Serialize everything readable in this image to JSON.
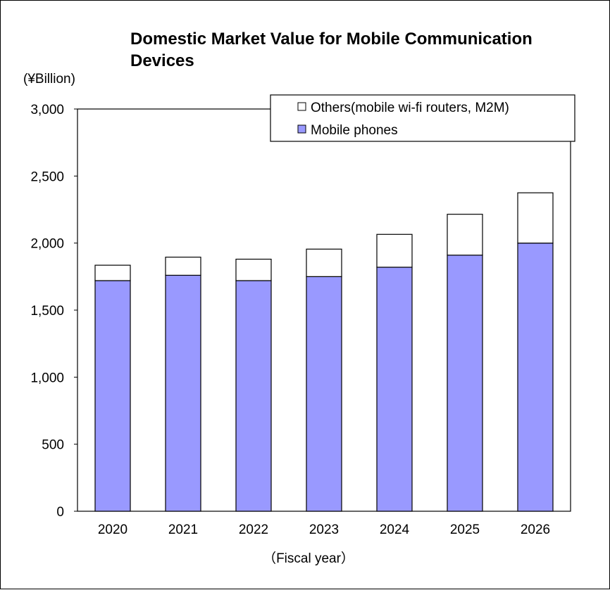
{
  "chart_data": {
    "type": "bar",
    "stacked": true,
    "title": "Domestic Market Value for Mobile Communication Devices",
    "title_lines": [
      "Domestic Market Value for Mobile Communication",
      "Devices"
    ],
    "ylabel": "(¥Billion)",
    "xlabel": "（Fiscal year）",
    "ylim": [
      0,
      3000
    ],
    "yticks": [
      0,
      500,
      1000,
      1500,
      2000,
      2500,
      3000
    ],
    "ytick_labels": [
      "0",
      "500",
      "1,000",
      "1,500",
      "2,000",
      "2,500",
      "3,000"
    ],
    "categories": [
      "2020",
      "2021",
      "2022",
      "2023",
      "2024",
      "2025",
      "2026"
    ],
    "series": [
      {
        "name": "Mobile phones",
        "color": "#9999ff",
        "values": [
          1720,
          1760,
          1720,
          1750,
          1820,
          1910,
          2000
        ]
      },
      {
        "name": "Others(mobile wi-fi routers, M2M)",
        "color": "#ffffff",
        "values": [
          115,
          135,
          160,
          205,
          245,
          305,
          375
        ]
      }
    ],
    "legend": {
      "placement": "top-right",
      "order": [
        "Others(mobile wi-fi routers, M2M)",
        "Mobile phones"
      ]
    },
    "grid": false
  }
}
